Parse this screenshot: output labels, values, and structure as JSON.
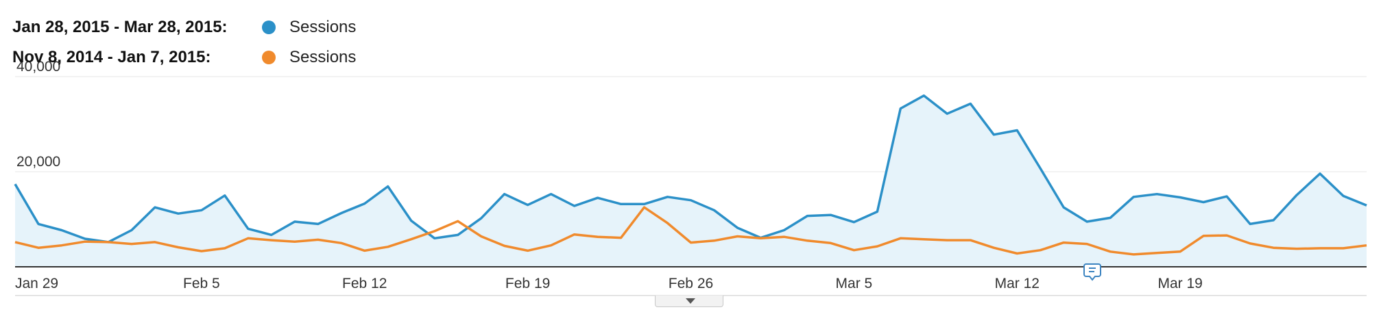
{
  "legend": {
    "current_range": "Jan 28, 2015 - Mar 28, 2015:",
    "current_label": "Sessions",
    "previous_range": "Nov 8, 2014 - Jan 7, 2015:",
    "previous_label": "Sessions"
  },
  "colors": {
    "current": "#2b90c8",
    "current_fill": "#e6f3fa",
    "previous": "#f08a2c",
    "grid": "#e6e6e6",
    "axis": "#333333"
  },
  "icons": {
    "annotation": "annotation-comment-icon",
    "expand": "chevron-down-icon"
  },
  "chart_data": {
    "type": "area",
    "title": "",
    "xlabel": "",
    "ylabel": "",
    "x_tick_labels": [
      "Jan 29",
      "Feb 5",
      "Feb 12",
      "Feb 19",
      "Feb 26",
      "Mar 5",
      "Mar 12",
      "Mar 19"
    ],
    "x_tick_index": [
      1,
      8,
      15,
      22,
      29,
      36,
      43,
      50
    ],
    "y_ticks": [
      20000,
      40000
    ],
    "y_tick_labels": [
      "20,000",
      "40,000"
    ],
    "ylim": [
      0,
      40000
    ],
    "grid": true,
    "legend_position": "top-left",
    "series": [
      {
        "name": "Sessions",
        "period": "Jan 28, 2015 - Mar 28, 2015",
        "style": "area",
        "values": [
          17400,
          9000,
          7700,
          5900,
          5200,
          7700,
          12500,
          11200,
          11900,
          15000,
          8000,
          6700,
          9500,
          9000,
          11300,
          13300,
          16900,
          9700,
          6000,
          6700,
          10200,
          15300,
          13000,
          15300,
          12800,
          14500,
          13200,
          13200,
          14700,
          14000,
          11900,
          8200,
          6100,
          7700,
          10700,
          10900,
          9400,
          11600,
          33300,
          36000,
          32200,
          34300,
          27800,
          28700,
          20700,
          12500,
          9500,
          10300,
          14700,
          15300,
          14600,
          13600,
          14800,
          9000,
          9800,
          15100,
          19600,
          14900,
          12900
        ]
      },
      {
        "name": "Sessions",
        "period": "Nov 8, 2014 - Jan 7, 2015",
        "style": "line",
        "values": [
          5200,
          4000,
          4500,
          5300,
          5200,
          4800,
          5200,
          4100,
          3300,
          3900,
          6000,
          5600,
          5300,
          5700,
          5000,
          3400,
          4200,
          5800,
          7500,
          9600,
          6400,
          4400,
          3400,
          4500,
          6800,
          6300,
          6100,
          12500,
          9200,
          5100,
          5500,
          6400,
          6000,
          6300,
          5500,
          5000,
          3500,
          4300,
          6000,
          5800,
          5600,
          5600,
          4000,
          2800,
          3500,
          5100,
          4800,
          3200,
          2600,
          2900,
          3200,
          6500,
          6600,
          4900,
          4000,
          3800,
          3900,
          3900,
          4500
        ]
      }
    ]
  }
}
